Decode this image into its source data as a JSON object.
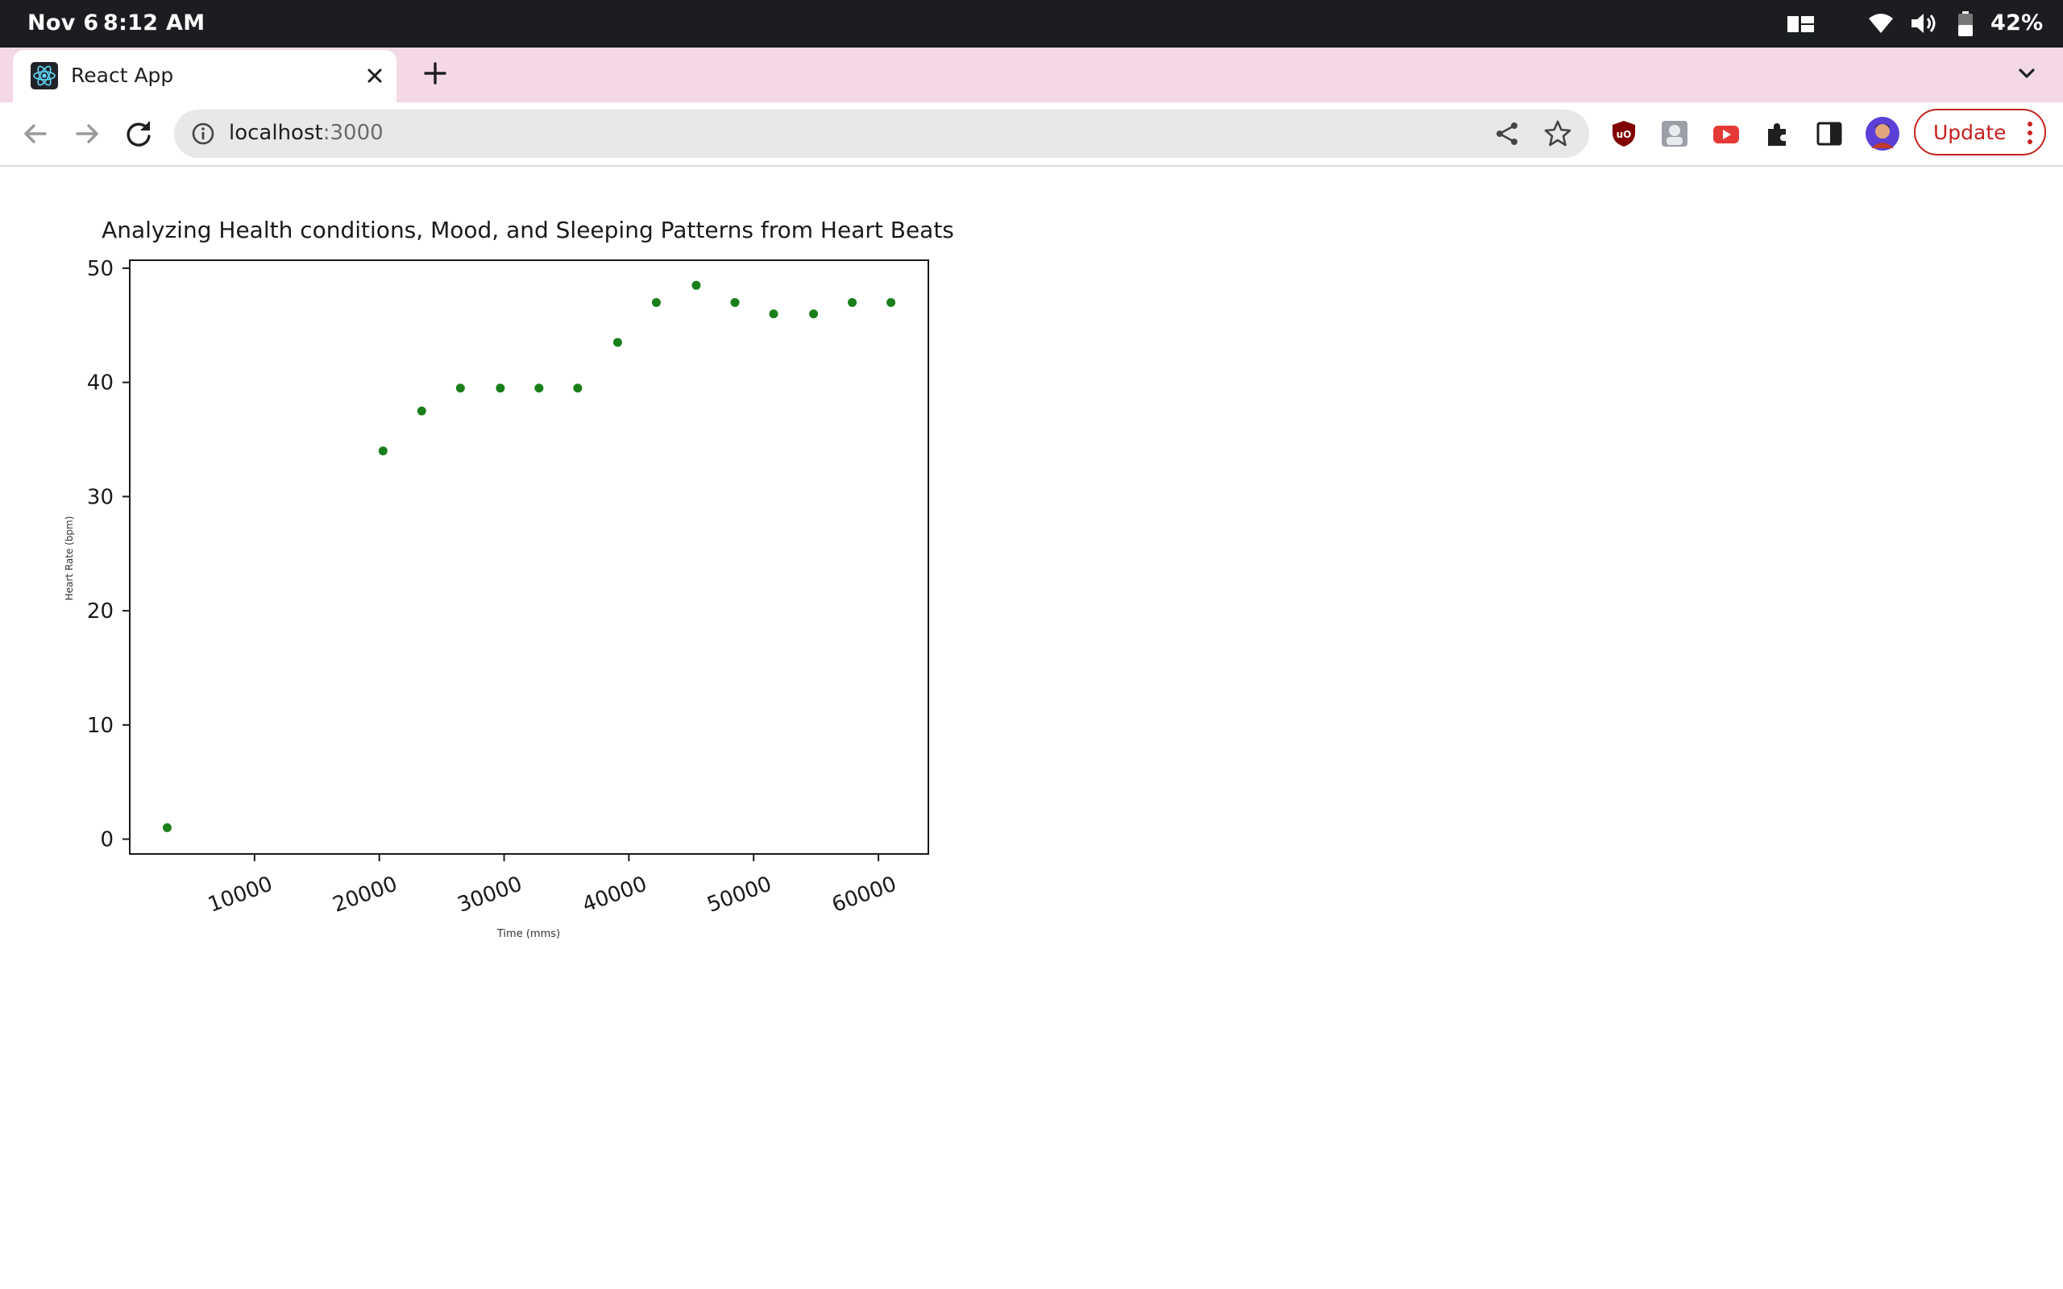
{
  "status_bar": {
    "date": "Nov 6",
    "time": "8:12 AM",
    "battery": "42%",
    "icons": [
      "multitask-icon",
      "wifi-icon",
      "volume-icon",
      "battery-icon"
    ]
  },
  "browser": {
    "tab": {
      "title": "React App",
      "favicon": "react-logo-icon"
    },
    "address": {
      "host": "localhost",
      "port": ":3000"
    },
    "update_label": "Update",
    "extensions": [
      "ublock-icon",
      "extension-portrait-icon",
      "youtube-icon",
      "puzzle-icon",
      "side-panel-icon",
      "profile-avatar"
    ],
    "colors": {
      "tab_strip": "#f3d8e6",
      "update": "#c5221f"
    }
  },
  "chart_data": {
    "type": "scatter",
    "title": "Analyzing Health conditions, Mood, and Sleeping Patterns from Heart Beats",
    "xlabel": "Time (mms)",
    "ylabel": "Heart Rate (bpm)",
    "xlim": [
      0,
      64000
    ],
    "ylim": [
      -1.3,
      50.7
    ],
    "xticks": [
      10000,
      20000,
      30000,
      40000,
      50000,
      60000
    ],
    "yticks": [
      0,
      10,
      20,
      30,
      40,
      50
    ],
    "marker_color": "#1a7f1a",
    "grid": false,
    "points": [
      {
        "x": 3000,
        "y": 1
      },
      {
        "x": 20300,
        "y": 34
      },
      {
        "x": 23400,
        "y": 37.5
      },
      {
        "x": 26500,
        "y": 39.5
      },
      {
        "x": 29700,
        "y": 39.5
      },
      {
        "x": 32800,
        "y": 39.5
      },
      {
        "x": 35900,
        "y": 39.5
      },
      {
        "x": 39100,
        "y": 43.5
      },
      {
        "x": 42200,
        "y": 47
      },
      {
        "x": 45400,
        "y": 48.5
      },
      {
        "x": 48500,
        "y": 47
      },
      {
        "x": 51600,
        "y": 46
      },
      {
        "x": 54800,
        "y": 46
      },
      {
        "x": 57900,
        "y": 47
      },
      {
        "x": 61000,
        "y": 47
      }
    ]
  }
}
